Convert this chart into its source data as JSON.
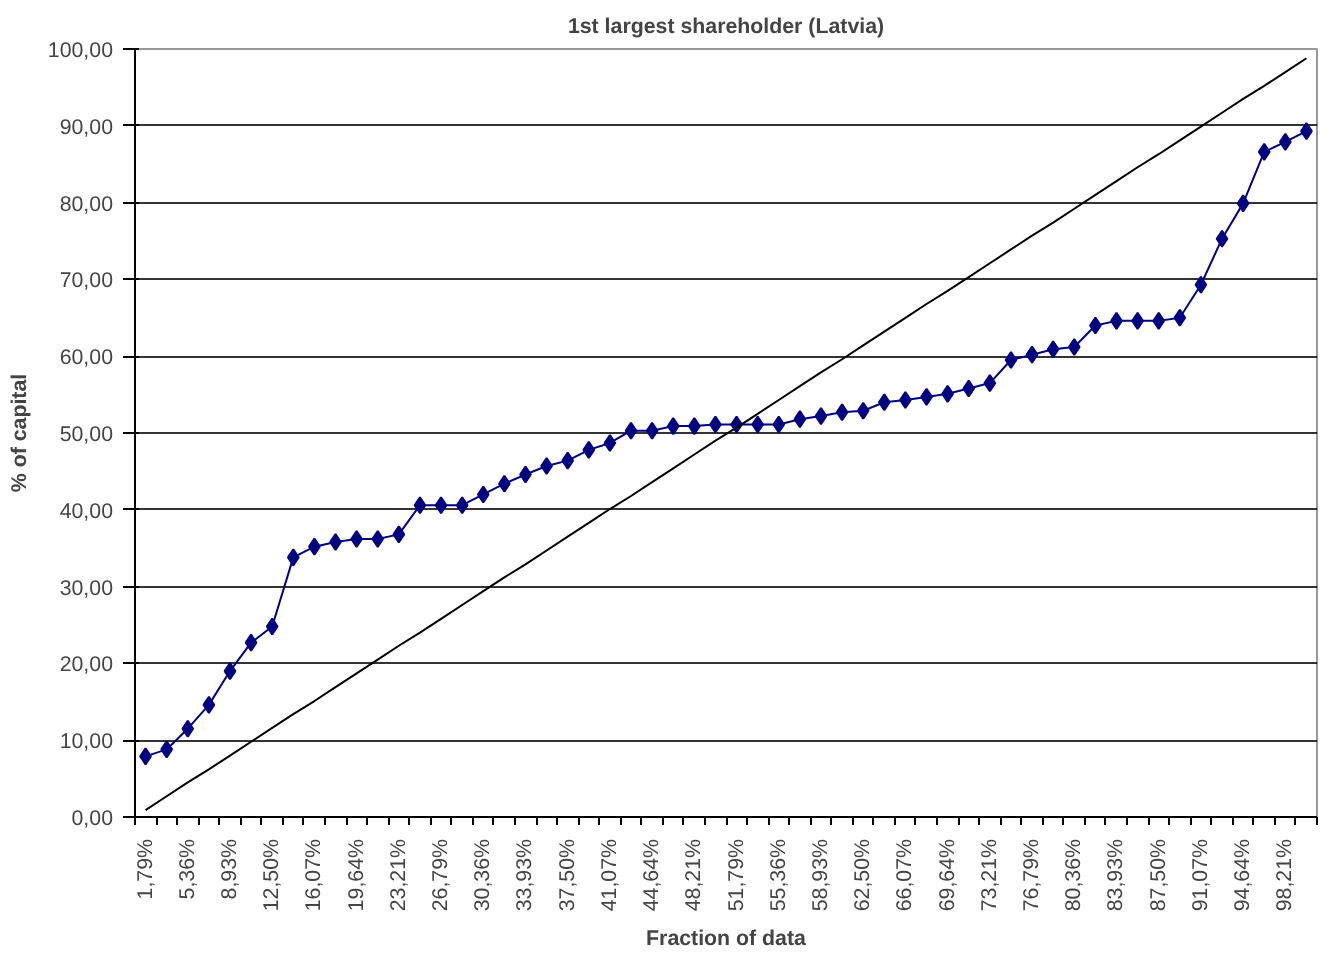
{
  "chart_data": {
    "type": "line",
    "title": "1st largest shareholder (Latvia)",
    "xlabel": "Fraction of data",
    "ylabel": "% of capital",
    "categories": [
      "1,79%",
      null,
      "5,36%",
      null,
      "8,93%",
      null,
      "12,50%",
      null,
      "16,07%",
      null,
      "19,64%",
      null,
      "23,21%",
      null,
      "26,79%",
      null,
      "30,36%",
      null,
      "33,93%",
      null,
      "37,50%",
      null,
      "41,07%",
      null,
      "44,64%",
      null,
      "48,21%",
      null,
      "51,79%",
      null,
      "55,36%",
      null,
      "58,93%",
      null,
      "62,50%",
      null,
      "66,07%",
      null,
      "69,64%",
      null,
      "73,21%",
      null,
      "76,79%",
      null,
      "80,36%",
      null,
      "83,93%",
      null,
      "87,50%",
      null,
      "91,07%",
      null,
      "94,64%",
      null,
      "98,21%",
      null
    ],
    "series": [
      {
        "color": "#000080",
        "marker": "diamond",
        "values": [
          7.9,
          8.8,
          11.5,
          14.6,
          19.0,
          22.7,
          24.8,
          33.8,
          35.2,
          35.8,
          36.2,
          36.2,
          36.8,
          40.6,
          40.6,
          40.6,
          42.0,
          43.4,
          44.6,
          45.7,
          46.4,
          47.8,
          48.7,
          50.3,
          50.3,
          50.9,
          50.9,
          51.1,
          51.1,
          51.1,
          51.1,
          51.8,
          52.2,
          52.7,
          52.9,
          54.0,
          54.3,
          54.7,
          55.1,
          55.8,
          56.5,
          59.5,
          60.2,
          60.9,
          61.2,
          64.0,
          64.6,
          64.6,
          64.6,
          65.0,
          69.3,
          75.3,
          79.9,
          86.6,
          87.9,
          89.3
        ]
      },
      {
        "color": "#000000",
        "marker": "none",
        "values": [
          0.9,
          2.7,
          4.5,
          6.2,
          8.0,
          9.8,
          11.6,
          13.4,
          15.1,
          16.9,
          18.7,
          20.5,
          22.3,
          24.0,
          25.8,
          27.6,
          29.4,
          31.2,
          32.9,
          34.7,
          36.5,
          38.3,
          40.1,
          41.8,
          43.6,
          45.4,
          47.2,
          49.0,
          50.7,
          52.5,
          54.3,
          56.1,
          57.9,
          59.6,
          61.4,
          63.2,
          65.0,
          66.8,
          68.5,
          70.3,
          72.1,
          73.9,
          75.7,
          77.4,
          79.2,
          81.0,
          82.8,
          84.6,
          86.3,
          88.1,
          89.9,
          91.7,
          93.5,
          95.2,
          97.0,
          98.8
        ]
      }
    ],
    "ylim": [
      0,
      100
    ],
    "yticks": [
      {
        "value": 0,
        "label": "0,00"
      },
      {
        "value": 10,
        "label": "10,00"
      },
      {
        "value": 20,
        "label": "20,00"
      },
      {
        "value": 30,
        "label": "30,00"
      },
      {
        "value": 40,
        "label": "40,00"
      },
      {
        "value": 50,
        "label": "50,00"
      },
      {
        "value": 60,
        "label": "60,00"
      },
      {
        "value": 70,
        "label": "70,00"
      },
      {
        "value": 80,
        "label": "80,00"
      },
      {
        "value": 90,
        "label": "90,00"
      },
      {
        "value": 100,
        "label": "100,00"
      }
    ],
    "grid": "y",
    "line_style": "solid"
  }
}
